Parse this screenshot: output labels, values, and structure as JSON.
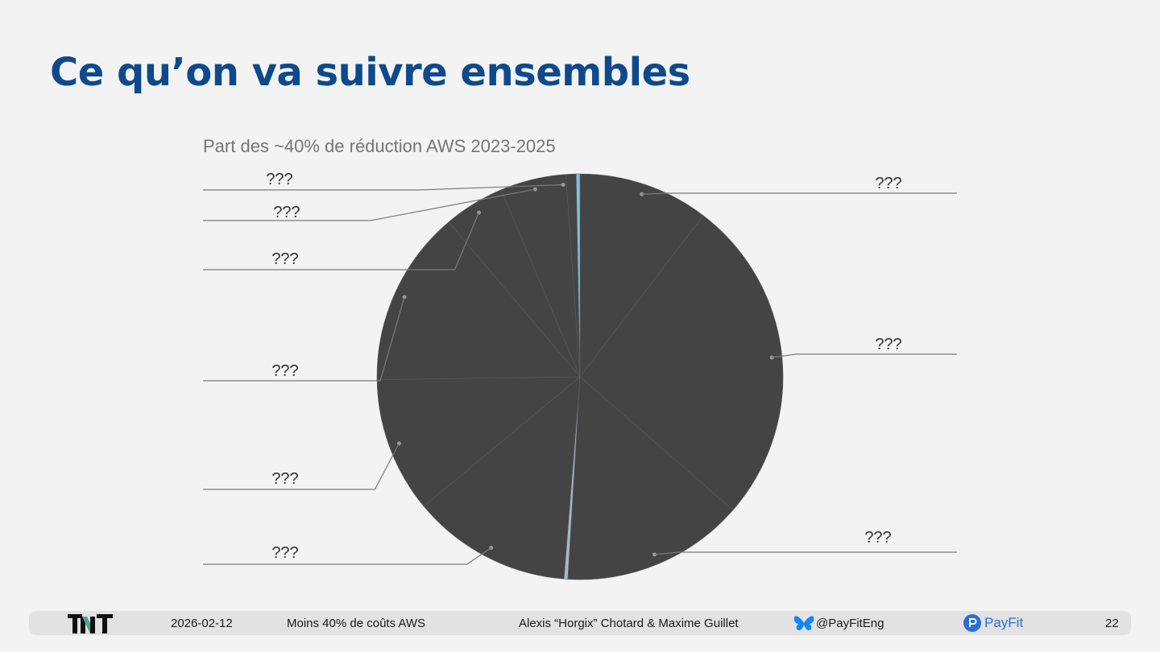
{
  "slide": {
    "title": "Ce qu’on va suivre ensembles"
  },
  "chart_data": {
    "type": "pie",
    "title": "Part des ~40% de réduction AWS 2023-2025",
    "start_angle_deg": 0,
    "direction": "clockwise",
    "slices": [
      {
        "label": "???",
        "value": 10.3,
        "color": "#444444"
      },
      {
        "label": "???",
        "value": 25.8,
        "color": "#444444"
      },
      {
        "label": "???",
        "value": 14.4,
        "color": "#444444"
      },
      {
        "label": "???",
        "value": 0.3,
        "color": "#a7b8c6"
      },
      {
        "label": "???",
        "value": 12.6,
        "color": "#444444"
      },
      {
        "label": "???",
        "value": 10.7,
        "color": "#444444"
      },
      {
        "label": "???",
        "value": 13.9,
        "color": "#444444"
      },
      {
        "label": "???",
        "value": 4.8,
        "color": "#444444"
      },
      {
        "label": "???",
        "value": 5.2,
        "color": "#444444"
      },
      {
        "label": "",
        "value": 0.8,
        "color": "#444444"
      },
      {
        "label": "",
        "value": 0.3,
        "color": "#7fc4e6"
      }
    ]
  },
  "footer": {
    "date": "2026-02-12",
    "talk_title": "Moins 40% de coûts AWS",
    "authors": "Alexis “Horgix” Chotard & Maxime Guillet",
    "handle": "@PayFitEng",
    "company": "PayFit",
    "page_number": "22"
  },
  "icons": {
    "logo": "tnt-logo",
    "social": "bluesky-butterfly-icon",
    "company": "payfit-logo"
  },
  "colors": {
    "title": "#0d4a8c",
    "pie": "#444444",
    "leader_line": "#7a7a7a",
    "footer_bg": "#e2e2e2"
  }
}
